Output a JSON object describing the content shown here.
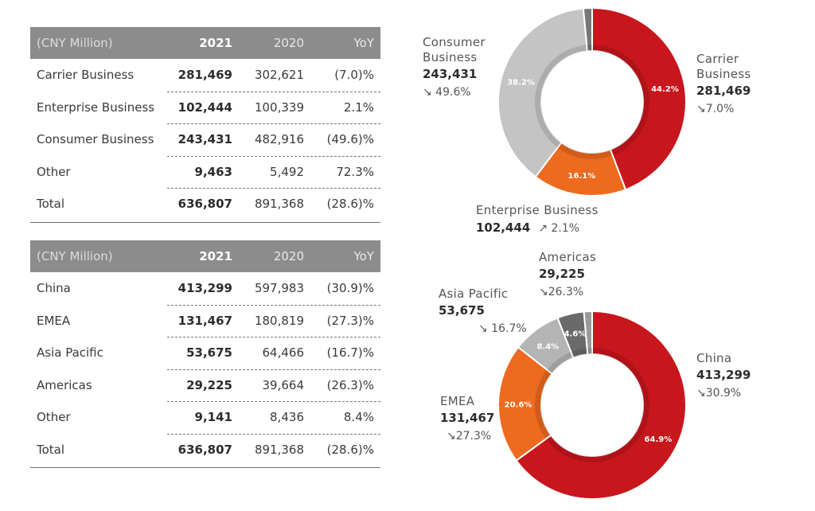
{
  "business_table": {
    "headers": [
      "(CNY Million)",
      "2021",
      "2020",
      "YoY"
    ],
    "rows": [
      [
        "Carrier Business",
        "281,469",
        "302,621",
        "(7.0)%"
      ],
      [
        "Enterprise Business",
        "102,444",
        "100,339",
        "2.1%"
      ],
      [
        "Consumer Business",
        "243,431",
        "482,916",
        "(49.6)%"
      ],
      [
        "Other",
        "9,463",
        "5,492",
        "72.3%"
      ],
      [
        "Total",
        "636,807",
        "891,368",
        "(28.6)%"
      ]
    ]
  },
  "region_table": {
    "headers": [
      "(CNY Million)",
      "2021",
      "2020",
      "YoY"
    ],
    "rows": [
      [
        "China",
        "413,299",
        "597,983",
        "(30.9)%"
      ],
      [
        "EMEA",
        "131,467",
        "180,819",
        "(27.3)%"
      ],
      [
        "Asia Pacific",
        "53,675",
        "64,466",
        "(16.7)%"
      ],
      [
        "Americas",
        "29,225",
        "39,664",
        "(26.3)%"
      ],
      [
        "Other",
        "9,141",
        "8,436",
        "8.4%"
      ],
      [
        "Total",
        "636,807",
        "891,368",
        "(28.6)%"
      ]
    ]
  },
  "chart_data": [
    {
      "type": "pie",
      "variant": "donut",
      "slices": [
        {
          "name": "Carrier Business",
          "value": 281469,
          "pct_label": "44.2%",
          "share": 44.2,
          "change": "7.0%",
          "direction": "down",
          "color": "#c8161d"
        },
        {
          "name": "Enterprise Business",
          "value": 102444,
          "pct_label": "16.1%",
          "share": 16.1,
          "change": "2.1%",
          "direction": "up",
          "color": "#ee6a1f"
        },
        {
          "name": "Consumer Business",
          "value": 243431,
          "pct_label": "38.2%",
          "share": 38.2,
          "change": "49.6%",
          "direction": "down",
          "color": "#c4c4c4"
        },
        {
          "name": "Other",
          "value": 9463,
          "pct_label": "",
          "share": 1.5,
          "change": "",
          "direction": "",
          "color": "#777777"
        }
      ]
    },
    {
      "type": "pie",
      "variant": "donut",
      "slices": [
        {
          "name": "China",
          "value": 413299,
          "pct_label": "64.9%",
          "share": 64.9,
          "change": "30.9%",
          "direction": "down",
          "color": "#c8161d"
        },
        {
          "name": "EMEA",
          "value": 131467,
          "pct_label": "20.6%",
          "share": 20.6,
          "change": "27.3%",
          "direction": "down",
          "color": "#ee6a1f"
        },
        {
          "name": "Asia Pacific",
          "value": 53675,
          "pct_label": "8.4%",
          "share": 8.4,
          "change": "16.7%",
          "direction": "down",
          "color": "#b4b4b4"
        },
        {
          "name": "Americas",
          "value": 29225,
          "pct_label": "4.6%",
          "share": 4.6,
          "change": "26.3%",
          "direction": "down",
          "color": "#6a6a6a"
        },
        {
          "name": "Other",
          "value": 9141,
          "pct_label": "",
          "share": 1.4,
          "change": "",
          "direction": "",
          "color": "#9a9a9a"
        }
      ]
    }
  ],
  "labels": {
    "carrier": {
      "name_1": "Carrier",
      "name_2": "Business",
      "value": "281,469",
      "change": "↘7.0%"
    },
    "enterprise": {
      "name": "Enterprise Business",
      "value": "102,444",
      "change": "↗ 2.1%"
    },
    "consumer": {
      "name_1": "Consumer",
      "name_2": "Business",
      "value": "243,431",
      "change": "↘ 49.6%"
    },
    "china": {
      "name": "China",
      "value": "413,299",
      "change": "↘30.9%"
    },
    "emea": {
      "name": "EMEA",
      "value": "131,467",
      "change": "↘27.3%"
    },
    "asia": {
      "name": "Asia Pacific",
      "value": "53,675",
      "change": "↘ 16.7%"
    },
    "americas": {
      "name": "Americas",
      "value": "29,225",
      "change": "↘26.3%"
    }
  }
}
